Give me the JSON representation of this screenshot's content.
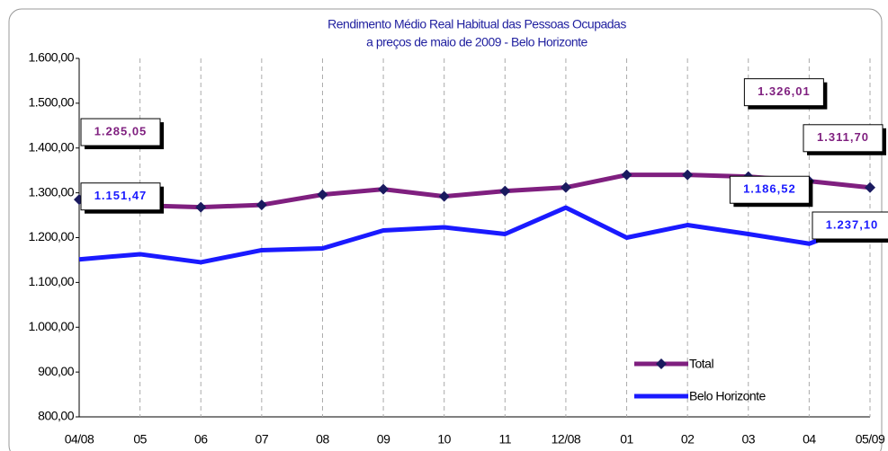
{
  "chart_data": {
    "type": "line",
    "title": "Rendimento Médio Real Habitual das Pessoas Ocupadas",
    "subtitle": "a preços de maio de 2009 - Belo Horizonte",
    "categories": [
      "04/08",
      "05",
      "06",
      "07",
      "08",
      "09",
      "10",
      "11",
      "12/08",
      "01",
      "02",
      "03",
      "04",
      "05/09"
    ],
    "series": [
      {
        "name": "Total",
        "color": "#7f1f7f",
        "marker": "diamond",
        "values": [
          1285.05,
          1272,
          1268,
          1273,
          1296,
          1308,
          1292,
          1304,
          1312,
          1340,
          1340,
          1336,
          1326.01,
          1311.7
        ],
        "value_labels": [
          "1.285,05",
          null,
          null,
          null,
          null,
          null,
          null,
          null,
          null,
          null,
          null,
          null,
          "1.326,01",
          "1.311,70"
        ]
      },
      {
        "name": "Belo Horizonte",
        "color": "#1a1aff",
        "values": [
          1151.47,
          1163,
          1145,
          1172,
          1176,
          1216,
          1223,
          1208,
          1267,
          1200,
          1228,
          1208,
          1186.52,
          1237.1
        ],
        "value_labels": [
          "1.151,47",
          null,
          null,
          null,
          null,
          null,
          null,
          null,
          null,
          null,
          null,
          null,
          "1.186,52",
          "1.237,10"
        ]
      }
    ],
    "ylim": [
      800,
      1600
    ],
    "yticks": [
      {
        "value": 800,
        "label": "800,00"
      },
      {
        "value": 900,
        "label": "900,00"
      },
      {
        "value": 1000,
        "label": "1.000,00"
      },
      {
        "value": 1100,
        "label": "1.100,00"
      },
      {
        "value": 1200,
        "label": "1.200,00"
      },
      {
        "value": 1300,
        "label": "1.300,00"
      },
      {
        "value": 1400,
        "label": "1.400,00"
      },
      {
        "value": 1500,
        "label": "1.500,00"
      },
      {
        "value": 1600,
        "label": "1.600,00"
      }
    ],
    "grid": "x-dashed",
    "legend": "lower right"
  }
}
